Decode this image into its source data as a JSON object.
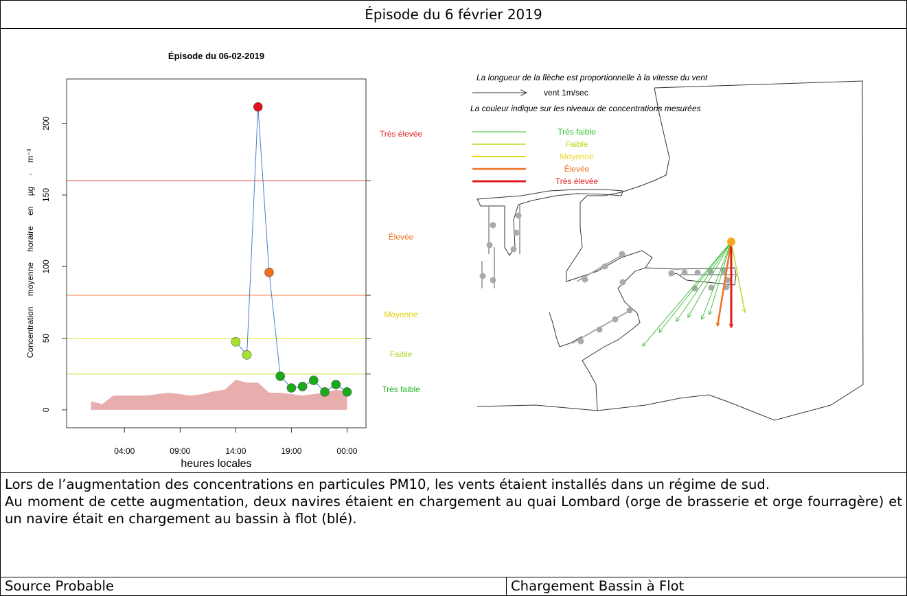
{
  "header": {
    "title": "Épisode du 6 février 2019"
  },
  "chart_data": {
    "type": "line",
    "title": "Épisode du 06-02-2019",
    "x_label": "heures locales",
    "y_label": "Concentration moyenne horaire en µg · m⁻³",
    "xlim": [
      -1.2,
      25.7
    ],
    "ylim": [
      -12.5,
      231
    ],
    "xticks": [
      {
        "value": 4,
        "label": "04:00"
      },
      {
        "value": 9,
        "label": "09:00"
      },
      {
        "value": 14,
        "label": "14:00"
      },
      {
        "value": 19,
        "label": "19:00"
      },
      {
        "value": 24,
        "label": "00:00"
      }
    ],
    "yticks": [
      0,
      50,
      100,
      150,
      200
    ],
    "series": [
      {
        "color": "#4a7cc8",
        "x": [
          14,
          15,
          16,
          17,
          18,
          19,
          20,
          21,
          22,
          23,
          24
        ],
        "values": [
          47.5,
          38.4,
          211.5,
          96,
          23.5,
          15.3,
          16.3,
          20.6,
          12.5,
          17.7,
          12.5
        ],
        "point_colors": [
          "#a6e22e",
          "#a6e22e",
          "#e3101a",
          "#f07020",
          "#1aaa1a",
          "#1aaa1a",
          "#1aaa1a",
          "#1aaa1a",
          "#1aaa1a",
          "#1aaa1a",
          "#1aaa1a"
        ]
      }
    ],
    "area": {
      "color": "#e8aeae",
      "x": [
        1,
        2,
        3,
        4,
        5,
        6,
        7,
        8,
        9,
        10,
        11,
        12,
        13,
        14,
        15,
        16,
        17,
        18,
        19,
        20,
        21,
        22,
        23,
        24
      ],
      "values": [
        6,
        4,
        10,
        10,
        10,
        10,
        11,
        12,
        11,
        10,
        11,
        13,
        14,
        21,
        19,
        19,
        12,
        12,
        11,
        10,
        11,
        12,
        14,
        13
      ]
    },
    "thresholds": [
      {
        "value": 160,
        "color": "#e84040"
      },
      {
        "value": 80,
        "color": "#f08040"
      },
      {
        "value": 50,
        "color": "#e8e020"
      },
      {
        "value": 25,
        "color": "#b0e020"
      }
    ],
    "zones": [
      {
        "label": "Très élevée",
        "color": "#e62222"
      },
      {
        "label": "Élevée",
        "color": "#f07020"
      },
      {
        "label": "Moyenne",
        "color": "#e0d010"
      },
      {
        "label": "Faible",
        "color": "#a8d820"
      },
      {
        "label": "Très faible",
        "color": "#22b822"
      }
    ]
  },
  "map": {
    "note_length": "La longueur de la flèche est proportionnelle à la vitesse du vent",
    "scale_label": "vent 1m/sec",
    "note_color": "La couleur indique sur les niveaux de concentrations mesurées",
    "legend": [
      {
        "label": "Très faible",
        "color": "#33c033",
        "width": 1
      },
      {
        "label": "Faible",
        "color": "#b8dc20",
        "width": 1.5
      },
      {
        "label": "Moyenne",
        "color": "#e8d820",
        "width": 2
      },
      {
        "label": "Élevée",
        "color": "#f07020",
        "width": 2.5
      },
      {
        "label": "Très élevée",
        "color": "#e31a1a",
        "width": 3
      }
    ]
  },
  "body": {
    "paragraphs": [
      "Lors de l’augmentation des concentrations en particules PM10, les vents étaient installés dans un régime de sud.",
      "Au moment de cette augmentation, deux navires étaient en chargement au quai Lombard (orge de brasserie et orge fourragère) et un navire était en chargement au bassin à flot (blé)."
    ]
  },
  "footer": {
    "cells": [
      "Source Probable",
      "Chargement Bassin à Flot"
    ]
  }
}
